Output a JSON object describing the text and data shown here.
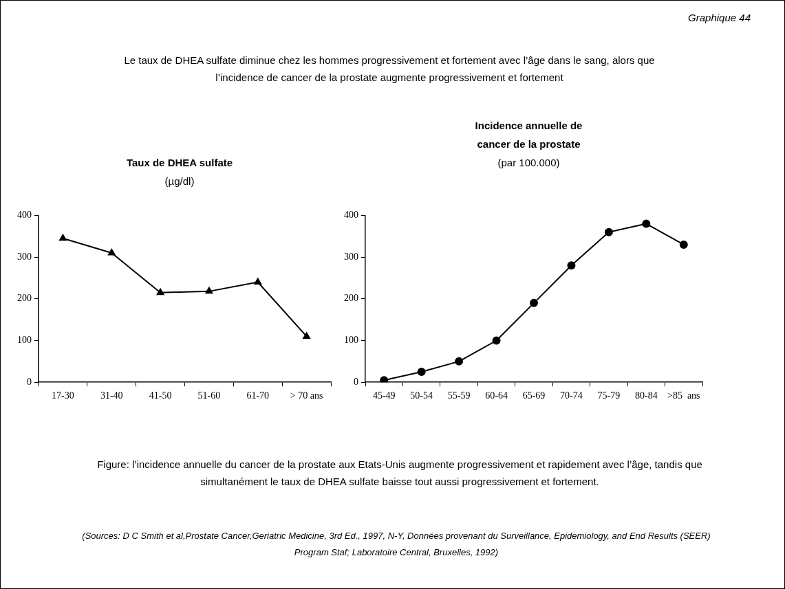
{
  "chart_data": [
    {
      "type": "other",
      "annotations": [
        "Graphique  44",
        "Le taux de DHEA sulfate diminue chez les hommes progressivement et fortement avec l’âge dans le sang, alors que l’incidence de cancer de la prostate augmente progressivement et fortement"
      ]
    },
    {
      "type": "line",
      "title": "Taux de DHEA sulfate",
      "subtitle": "(µg/dl)",
      "categories": [
        "17-30",
        "31-40",
        "41-50",
        "51-60",
        "61-70",
        "> 70 ans"
      ],
      "series": [
        {
          "color": "#000000",
          "values": [
            345,
            310,
            215,
            218,
            240,
            110
          ]
        }
      ],
      "ylim": [
        0,
        400
      ],
      "yticks": [
        0,
        100,
        200,
        300,
        400
      ],
      "marker": "triangle",
      "legend": false,
      "grid": false
    },
    {
      "type": "line",
      "title": "Incidence annuelle de cancer de la prostate",
      "subtitle": "(par 100.000)",
      "categories": [
        "45-49",
        "50-54",
        "55-59",
        "60-64",
        "65-69",
        "70-74",
        "75-79",
        "80-84",
        ">85  ans"
      ],
      "series": [
        {
          "color": "#000000",
          "values": [
            5,
            25,
            50,
            100,
            190,
            280,
            360,
            380,
            330
          ]
        }
      ],
      "ylim": [
        0,
        400
      ],
      "yticks": [
        0,
        100,
        200,
        300,
        400
      ],
      "marker": "circle",
      "legend": false,
      "grid": false
    },
    {
      "type": "other",
      "annotations": [
        "Figure: l’incidence annuelle du cancer de la prostate aux Etats-Unis augmente progressivement et rapidement avec l’âge, tandis que simultanément le taux de DHEA sulfate baisse tout aussi progressivement et fortement.",
        "(Sources: D C Smith et al,Prostate Cancer,Geriatric Medicine, 3rd Ed., 1997, N-Y, Données provenant du Surveillance, Epidemiology, and End Results (SEER) Program Staf; Laboratoire Central, Bruxelles, 1992)"
      ]
    }
  ]
}
